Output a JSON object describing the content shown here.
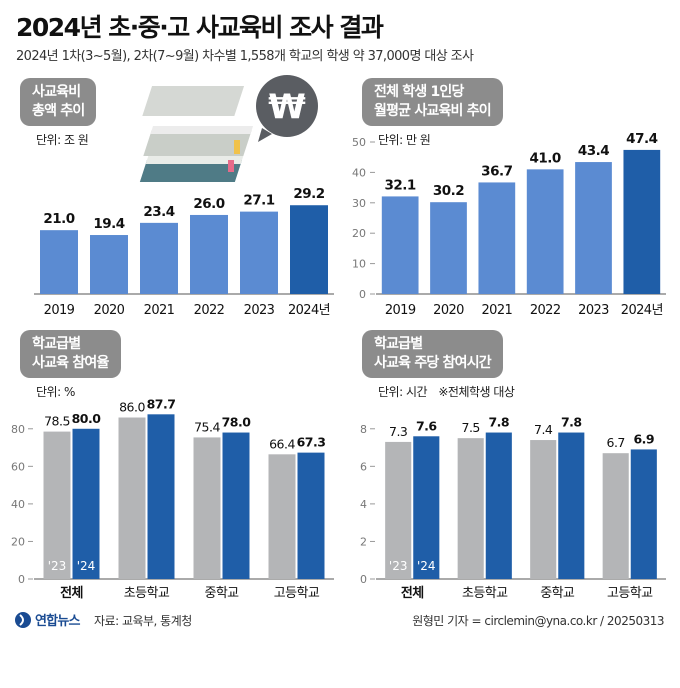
{
  "header": {
    "title": "2024년 초·중·고 사교육비 조사 결과",
    "subtitle": "2024년 1차(3~5월), 2차(7~9월) 차수별 1,558개 학교의 학생 약 37,000명 대상 조사"
  },
  "chart_data": [
    {
      "id": "total-spending",
      "type": "bar",
      "title_lines": [
        "사교육비",
        "총액 추이"
      ],
      "unit": "단위: 조 원",
      "categories": [
        "2019",
        "2020",
        "2021",
        "2022",
        "2023",
        "2024년"
      ],
      "values": [
        21.0,
        19.4,
        23.4,
        26.0,
        27.1,
        29.2
      ],
      "labels": [
        "21.0",
        "19.4",
        "23.4",
        "26.0",
        "27.1",
        "29.2"
      ],
      "ylim": [
        0,
        50
      ],
      "colors": [
        "#5b8bd2",
        "#5b8bd2",
        "#5b8bd2",
        "#5b8bd2",
        "#5b8bd2",
        "#1f5ea8"
      ]
    },
    {
      "id": "per-student-spending",
      "type": "bar",
      "title_lines": [
        "전체 학생 1인당",
        "월평균 사교육비 추이"
      ],
      "unit": "단위: 만 원",
      "categories": [
        "2019",
        "2020",
        "2021",
        "2022",
        "2023",
        "2024년"
      ],
      "values": [
        32.1,
        30.2,
        36.7,
        41.0,
        43.4,
        47.4
      ],
      "labels": [
        "32.1",
        "30.2",
        "36.7",
        "41.0",
        "43.4",
        "47.4"
      ],
      "ylim": [
        0,
        50
      ],
      "yticks": [
        "0",
        "10",
        "20",
        "30",
        "40",
        "50"
      ],
      "colors": [
        "#5b8bd2",
        "#5b8bd2",
        "#5b8bd2",
        "#5b8bd2",
        "#5b8bd2",
        "#1f5ea8"
      ]
    },
    {
      "id": "participation-rate",
      "type": "bar",
      "title_lines": [
        "학교급별",
        "사교육 참여율"
      ],
      "unit": "단위: %",
      "categories": [
        "전체",
        "초등학교",
        "중학교",
        "고등학교"
      ],
      "series": [
        {
          "name": "'23",
          "values": [
            78.5,
            86.0,
            75.4,
            66.4
          ],
          "labels": [
            "78.5",
            "86.0",
            "75.4",
            "66.4"
          ],
          "color": "#b4b5b7"
        },
        {
          "name": "'24",
          "values": [
            80.0,
            87.7,
            78.0,
            67.3
          ],
          "labels": [
            "80.0",
            "87.7",
            "78.0",
            "67.3"
          ],
          "color": "#1f5ea8"
        }
      ],
      "ylim": [
        0,
        90
      ],
      "yticks": [
        "0",
        "20",
        "40",
        "60",
        "80"
      ]
    },
    {
      "id": "weekly-hours",
      "type": "bar",
      "title_lines": [
        "학교급별",
        "사교육 주당 참여시간"
      ],
      "unit": "단위: 시간",
      "note": "※전체학생 대상",
      "categories": [
        "전체",
        "초등학교",
        "중학교",
        "고등학교"
      ],
      "series": [
        {
          "name": "'23",
          "values": [
            7.3,
            7.5,
            7.4,
            6.7
          ],
          "labels": [
            "7.3",
            "7.5",
            "7.4",
            "6.7"
          ],
          "color": "#b4b5b7"
        },
        {
          "name": "'24",
          "values": [
            7.6,
            7.8,
            7.8,
            6.9
          ],
          "labels": [
            "7.6",
            "7.8",
            "7.8",
            "6.9"
          ],
          "color": "#1f5ea8"
        }
      ],
      "ylim": [
        0,
        9
      ],
      "yticks": [
        "0",
        "2",
        "4",
        "6",
        "8"
      ]
    }
  ],
  "illustration": {
    "currency_symbol": "₩",
    "icon": "books-and-won-coin-icon"
  },
  "footer": {
    "logo": "연합뉴스",
    "source": "자료: 교육부, 통계청",
    "credit": "원형민 기자 = circlemin@yna.co.kr / 20250313"
  }
}
